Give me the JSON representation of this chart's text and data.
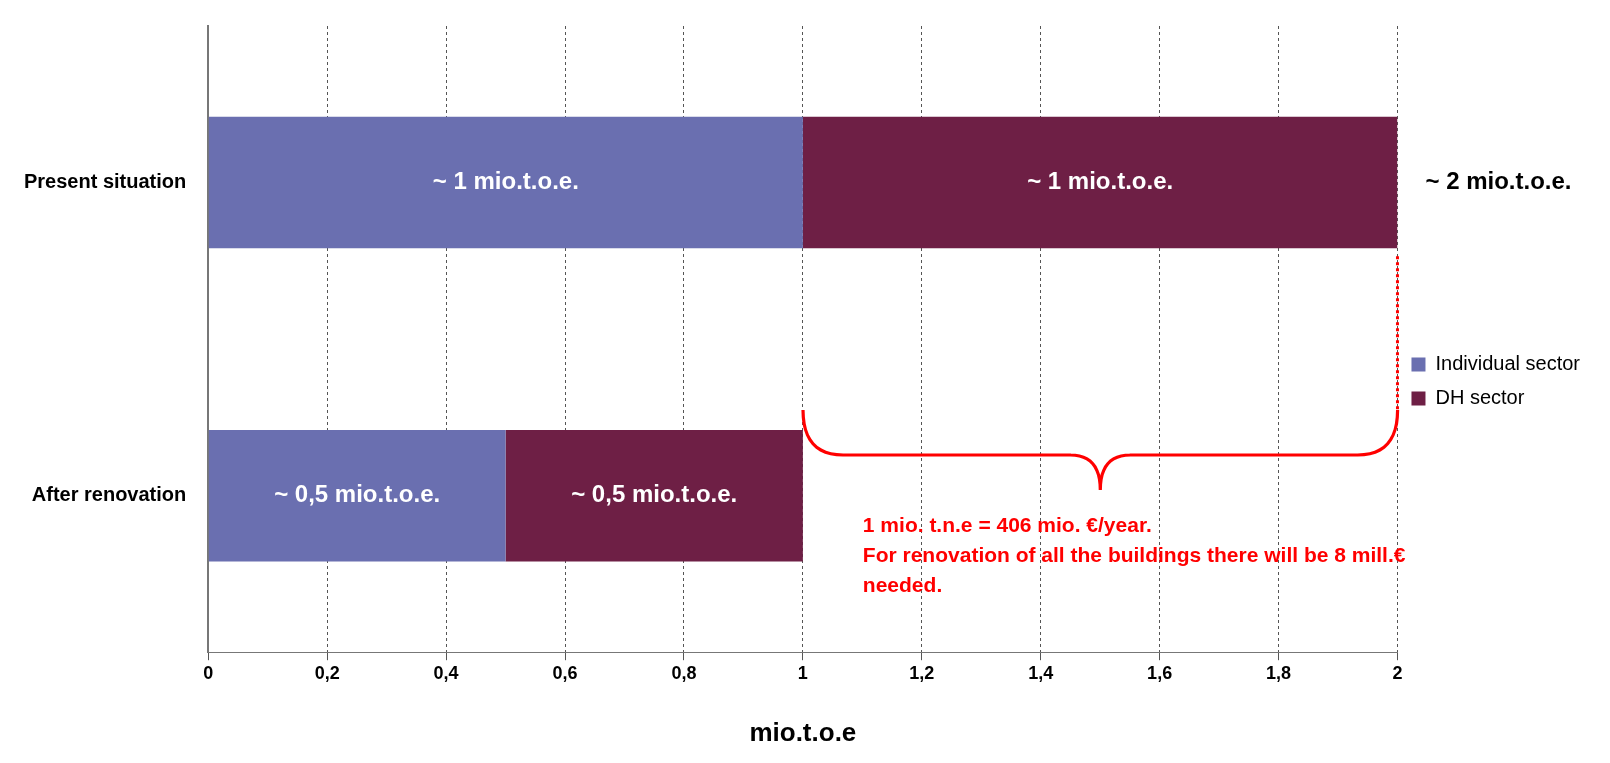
{
  "chart_data": {
    "type": "bar",
    "orientation": "horizontal",
    "stacked": true,
    "categories": [
      "Present situation",
      "After renovation"
    ],
    "series": [
      {
        "name": "Individual sector",
        "color": "#6a6fb0",
        "values": [
          1,
          0.5
        ],
        "value_labels": [
          "~ 1 mio.t.o.e.",
          "~ 0,5 mio.t.o.e."
        ]
      },
      {
        "name": "DH sector",
        "color": "#6e1f45",
        "values": [
          1,
          0.5
        ],
        "value_labels": [
          "~ 1 mio.t.o.e.",
          "~ 0,5 mio.t.o.e."
        ]
      }
    ],
    "totals": [
      "~ 2 mio.t.o.e.",
      null
    ],
    "xlim": [
      0,
      2
    ],
    "xticks": [
      0,
      {
        "value": 0.2,
        "label": "0,2"
      },
      {
        "value": 0.4,
        "label": "0,4"
      },
      {
        "value": 0.6,
        "label": "0,6"
      },
      {
        "value": 0.8,
        "label": "0,8"
      },
      1,
      {
        "value": 1.2,
        "label": "1,2"
      },
      {
        "value": 1.4,
        "label": "1,4"
      },
      {
        "value": 1.6,
        "label": "1,6"
      },
      {
        "value": 1.8,
        "label": "1,8"
      },
      2
    ],
    "xlabel": "mio.t.o.e",
    "grid": "x",
    "ref_lines": [
      {
        "axis": "x",
        "value": 2,
        "color": "#ff0000",
        "line_style": "dotted"
      }
    ],
    "legend": "right",
    "annotations": [
      "1 mio. t.n.e = 406 mio. €/year.",
      "For renovation of all the buildings there will be 8  mill.€ needed."
    ]
  }
}
